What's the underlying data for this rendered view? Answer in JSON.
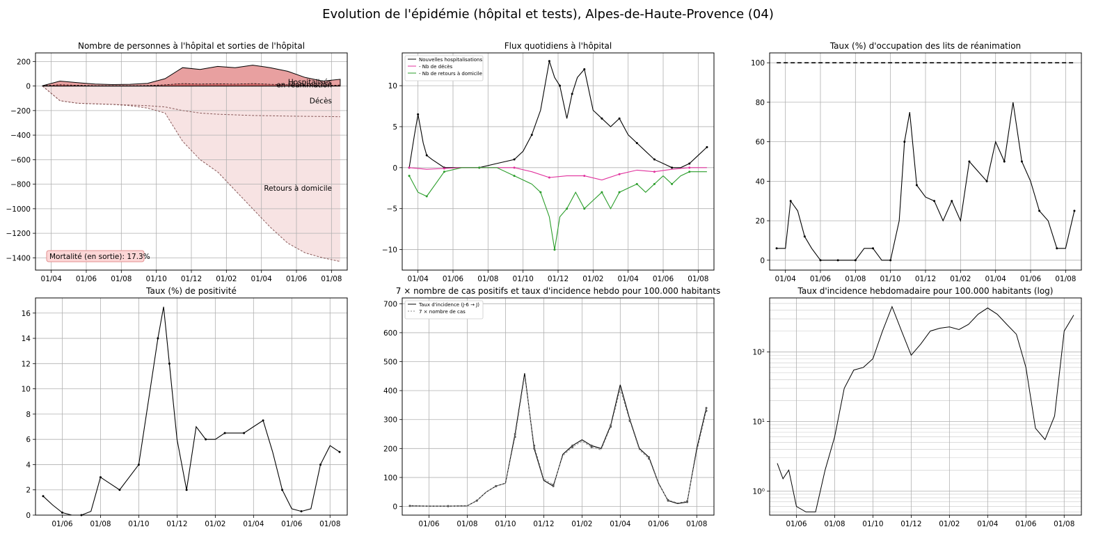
{
  "figure_title": "Evolution de l'épidémie (hôpital et tests), Alpes-de-Haute-Provence (04)",
  "colors": {
    "hosp_fill": "#e8a0a0",
    "rea_fill": "#d46a6a",
    "dc_fill": "#f7e3e3",
    "rad_fill": "#f7e3e3",
    "deces_series": "#e0309c",
    "retours_series": "#2a9d2a",
    "mortality_box_fill": "#fcd7d7",
    "mortality_box_edge": "#e38f8f"
  },
  "chart_data": [
    {
      "id": "hosp",
      "type": "area",
      "title": "Nombre de personnes à l'hôpital et sorties de l'hôpital",
      "xlabel": "",
      "ylabel": "",
      "x_ticks": [
        "01/04",
        "01/06",
        "01/08",
        "01/10",
        "01/12",
        "01/02",
        "01/04",
        "01/06",
        "01/08"
      ],
      "x_tick_positions": [
        0.5,
        2.5,
        4.5,
        6.5,
        8.5,
        10.5,
        12.5,
        14.5,
        16.5
      ],
      "xlim": [
        -0.4,
        17.4
      ],
      "ylim": [
        -1500,
        270
      ],
      "y_ticks": [
        200,
        0,
        -200,
        -400,
        -600,
        -800,
        -1000,
        -1200,
        -1400
      ],
      "grid": true,
      "series": [
        {
          "name": "Hospitalisés",
          "x": [
            0,
            1,
            2,
            3,
            4,
            5,
            6,
            7,
            8,
            9,
            10,
            11,
            12,
            13,
            14,
            15,
            16,
            17
          ],
          "y": [
            2,
            40,
            28,
            16,
            12,
            14,
            22,
            60,
            150,
            135,
            160,
            150,
            170,
            150,
            120,
            70,
            40,
            55
          ]
        },
        {
          "name": "en réanimation",
          "x": [
            0,
            1,
            2,
            3,
            4,
            5,
            6,
            7,
            8,
            9,
            10,
            11,
            12,
            13,
            14,
            15,
            16,
            17
          ],
          "y": [
            2,
            10,
            6,
            3,
            2,
            2,
            4,
            10,
            20,
            16,
            18,
            15,
            20,
            14,
            10,
            6,
            4,
            8
          ]
        },
        {
          "name": "Décès",
          "x": [
            0,
            1,
            2,
            3,
            4,
            5,
            6,
            7,
            8,
            9,
            10,
            11,
            12,
            13,
            14,
            15,
            16,
            17
          ],
          "y": [
            0,
            -120,
            -140,
            -145,
            -150,
            -155,
            -160,
            -170,
            -200,
            -220,
            -230,
            -235,
            -240,
            -242,
            -245,
            -247,
            -248,
            -250
          ]
        },
        {
          "name": "Retours à domicile",
          "x": [
            0,
            1,
            2,
            3,
            4,
            5,
            6,
            7,
            8,
            9,
            10,
            11,
            12,
            13,
            14,
            15,
            16,
            17
          ],
          "y": [
            0,
            -120,
            -140,
            -145,
            -150,
            -160,
            -180,
            -220,
            -450,
            -600,
            -700,
            -850,
            -1000,
            -1150,
            -1280,
            -1360,
            -1400,
            -1430
          ]
        }
      ],
      "annotations": [
        "Hospitalisés",
        "en réanimation",
        "Décès",
        "Retours à domicile"
      ],
      "mortality_box": "Mortalité (en sortie): 17.3%"
    },
    {
      "id": "flux",
      "type": "line",
      "title": "Flux quotidiens à l'hôpital",
      "x_ticks": [
        "01/04",
        "01/06",
        "01/08",
        "01/10",
        "01/12",
        "01/02",
        "01/04",
        "01/06",
        "01/08"
      ],
      "x_tick_positions": [
        0.5,
        2.5,
        4.5,
        6.5,
        8.5,
        10.5,
        12.5,
        14.5,
        16.5
      ],
      "xlim": [
        -0.4,
        17.4
      ],
      "ylim": [
        -12.5,
        14
      ],
      "y_ticks": [
        10,
        5,
        0,
        -5,
        -10
      ],
      "grid": true,
      "legend": "top-left",
      "series": [
        {
          "name": "Nouvelles hospitalisations",
          "color": "#000000",
          "x": [
            0,
            0.3,
            0.5,
            0.8,
            1.0,
            1.3,
            2,
            3,
            4,
            5,
            6,
            6.5,
            7,
            7.5,
            8,
            8.3,
            8.6,
            9,
            9.3,
            9.6,
            10,
            10.5,
            11,
            11.5,
            12,
            12.5,
            13,
            13.5,
            14,
            14.5,
            15,
            15.5,
            16,
            16.5,
            17
          ],
          "y": [
            0,
            4,
            6.5,
            3,
            1.5,
            1,
            0,
            0,
            0,
            0.5,
            1,
            2,
            4,
            7,
            13,
            11,
            10,
            6,
            9,
            11,
            12,
            7,
            6,
            5,
            6,
            4,
            3,
            2,
            1,
            0.5,
            0,
            0,
            0.5,
            1.5,
            2.5
          ]
        },
        {
          "name": "- Nb de décès",
          "color": "#e0309c",
          "x": [
            0,
            1,
            2,
            3,
            4,
            5,
            6,
            7,
            8,
            9,
            10,
            11,
            12,
            13,
            14,
            15,
            16,
            17
          ],
          "y": [
            0,
            -0.2,
            -0.1,
            0,
            0,
            0,
            0,
            -0.5,
            -1.2,
            -1,
            -1,
            -1.5,
            -0.8,
            -0.3,
            -0.5,
            -0.2,
            0,
            0
          ]
        },
        {
          "name": "- Nb de retours à domicile",
          "color": "#2a9d2a",
          "x": [
            0,
            0.5,
            1,
            1.5,
            2,
            3,
            4,
            5,
            6,
            7,
            7.5,
            8,
            8.3,
            8.6,
            9,
            9.5,
            10,
            10.5,
            11,
            11.5,
            12,
            12.5,
            13,
            13.5,
            14,
            14.5,
            15,
            15.5,
            16,
            17
          ],
          "y": [
            -1,
            -3,
            -3.5,
            -2,
            -0.5,
            0,
            0,
            0,
            -1,
            -2,
            -3,
            -6,
            -10,
            -6,
            -5,
            -3,
            -5,
            -4,
            -3,
            -5,
            -3,
            -2.5,
            -2,
            -3,
            -2,
            -1,
            -2,
            -1,
            -0.5,
            -0.5
          ]
        }
      ]
    },
    {
      "id": "rea",
      "type": "line",
      "title": "Taux (%) d'occupation des lits de réanimation",
      "x_ticks": [
        "01/04",
        "01/06",
        "01/08",
        "01/10",
        "01/12",
        "01/02",
        "01/04",
        "01/06",
        "01/08"
      ],
      "x_tick_positions": [
        0.5,
        2.5,
        4.5,
        6.5,
        8.5,
        10.5,
        12.5,
        14.5,
        16.5
      ],
      "xlim": [
        -0.4,
        17.4
      ],
      "ylim": [
        -5,
        105
      ],
      "y_ticks": [
        100,
        80,
        60,
        40,
        20,
        0
      ],
      "grid": true,
      "series": [
        {
          "name": "",
          "style": "dashed",
          "x": [
            0,
            17
          ],
          "y": [
            100,
            100
          ]
        },
        {
          "name": "",
          "x": [
            0,
            0.5,
            0.8,
            1.2,
            1.6,
            2,
            2.5,
            3,
            3.5,
            4,
            4.5,
            5,
            5.5,
            6,
            6.5,
            7,
            7.3,
            7.6,
            8,
            8.5,
            9,
            9.5,
            10,
            10.5,
            11,
            11.5,
            12,
            12.5,
            13,
            13.5,
            14,
            14.5,
            15,
            15.5,
            16,
            16.5,
            17
          ],
          "y": [
            6,
            6,
            30,
            25,
            12,
            6,
            0,
            0,
            0,
            0,
            0,
            6,
            6,
            0,
            0,
            20,
            60,
            75,
            38,
            32,
            30,
            20,
            30,
            20,
            50,
            45,
            40,
            60,
            50,
            80,
            50,
            40,
            25,
            20,
            6,
            6,
            25
          ]
        }
      ]
    },
    {
      "id": "positivite",
      "type": "line",
      "title": "Taux (%) de positivité",
      "x_ticks": [
        "01/06",
        "01/08",
        "01/10",
        "01/12",
        "01/02",
        "01/04",
        "01/06",
        "01/08"
      ],
      "x_tick_positions": [
        1,
        3,
        5,
        7,
        9,
        11,
        13,
        15
      ],
      "xlim": [
        -0.4,
        15.9
      ],
      "ylim": [
        0,
        17.2
      ],
      "y_ticks": [
        16,
        14,
        12,
        10,
        8,
        6,
        4,
        2,
        0
      ],
      "grid": true,
      "series": [
        {
          "name": "",
          "x": [
            0,
            0.5,
            1,
            1.5,
            2,
            2.5,
            3,
            3.5,
            4,
            4.5,
            5,
            5.5,
            6,
            6.3,
            6.6,
            7,
            7.5,
            8,
            8.5,
            9,
            9.5,
            10,
            10.5,
            11,
            11.5,
            12,
            12.5,
            13,
            13.5,
            14,
            14.5,
            15,
            15.5
          ],
          "y": [
            1.5,
            0.8,
            0.2,
            0,
            0,
            0.3,
            3,
            2.5,
            2,
            3,
            4,
            9,
            14,
            16.5,
            12,
            6,
            2,
            7,
            6,
            6,
            6.5,
            6.5,
            6.5,
            7,
            7.5,
            5,
            2,
            0.5,
            0.3,
            0.5,
            4,
            5.5,
            5
          ]
        }
      ]
    },
    {
      "id": "incidence",
      "type": "line",
      "title": "7 × nombre de cas positifs et taux d'incidence hebdo pour 100.000 habitants",
      "x_ticks": [
        "01/06",
        "01/08",
        "01/10",
        "01/12",
        "01/02",
        "01/04",
        "01/06",
        "01/08"
      ],
      "x_tick_positions": [
        1,
        3,
        5,
        7,
        9,
        11,
        13,
        15
      ],
      "xlim": [
        -0.4,
        15.9
      ],
      "ylim": [
        -30,
        720
      ],
      "y_ticks": [
        700,
        600,
        500,
        400,
        300,
        200,
        100,
        0
      ],
      "grid": true,
      "legend": "top-left",
      "series": [
        {
          "name": "Taux d'incidence (J-6 → J)",
          "x": [
            0,
            1,
            2,
            3,
            3.5,
            4,
            4.5,
            5,
            5.5,
            6,
            6.5,
            7,
            7.5,
            8,
            8.5,
            9,
            9.5,
            10,
            10.5,
            11,
            11.5,
            12,
            12.5,
            13,
            13.5,
            14,
            14.5,
            15,
            15.5
          ],
          "y": [
            2,
            1,
            1,
            2,
            20,
            50,
            70,
            80,
            250,
            460,
            200,
            90,
            70,
            180,
            210,
            230,
            210,
            200,
            280,
            420,
            300,
            200,
            170,
            80,
            20,
            10,
            15,
            200,
            340
          ]
        },
        {
          "name": "7 × nombre de cas",
          "style": "dashed",
          "x": [
            0,
            1,
            2,
            3,
            3.5,
            4,
            4.5,
            5,
            5.5,
            6,
            6.5,
            7,
            7.5,
            8,
            8.5,
            9,
            9.5,
            10,
            10.5,
            11,
            11.5,
            12,
            12.5,
            13,
            13.5,
            14,
            14.5,
            15,
            15.5
          ],
          "y": [
            2,
            1,
            1,
            2,
            20,
            50,
            70,
            80,
            240,
            450,
            210,
            95,
            75,
            175,
            205,
            225,
            205,
            195,
            275,
            405,
            295,
            195,
            165,
            78,
            22,
            12,
            18,
            190,
            330
          ]
        }
      ]
    },
    {
      "id": "incidence_log",
      "type": "line",
      "title": "Taux d'incidence hebdomadaire pour 100.000 habitants (log)",
      "x_ticks": [
        "01/06",
        "01/08",
        "01/10",
        "01/12",
        "01/02",
        "01/04",
        "01/06",
        "01/08"
      ],
      "x_tick_positions": [
        1,
        3,
        5,
        7,
        9,
        11,
        13,
        15
      ],
      "xlim": [
        -0.4,
        15.9
      ],
      "log_ylim": [
        0.45,
        600
      ],
      "y_ticks_log": [
        100,
        10,
        1
      ],
      "y_tick_labels": [
        "10²",
        "10¹",
        "10⁰"
      ],
      "grid": true,
      "series": [
        {
          "name": "",
          "x": [
            0,
            0.3,
            0.6,
            1,
            1.5,
            2,
            2.5,
            3,
            3.5,
            4,
            4.5,
            5,
            5.5,
            6,
            6.5,
            7,
            7.5,
            8,
            8.5,
            9,
            9.5,
            10,
            10.5,
            11,
            11.5,
            12,
            12.5,
            13,
            13.5,
            14,
            14.5,
            15,
            15.5
          ],
          "y": [
            2.5,
            1.5,
            2,
            0.6,
            0.5,
            0.5,
            2,
            6,
            30,
            55,
            60,
            80,
            200,
            450,
            200,
            90,
            130,
            200,
            220,
            230,
            210,
            250,
            350,
            430,
            350,
            250,
            180,
            60,
            8,
            5.5,
            12,
            200,
            340
          ]
        }
      ]
    }
  ]
}
